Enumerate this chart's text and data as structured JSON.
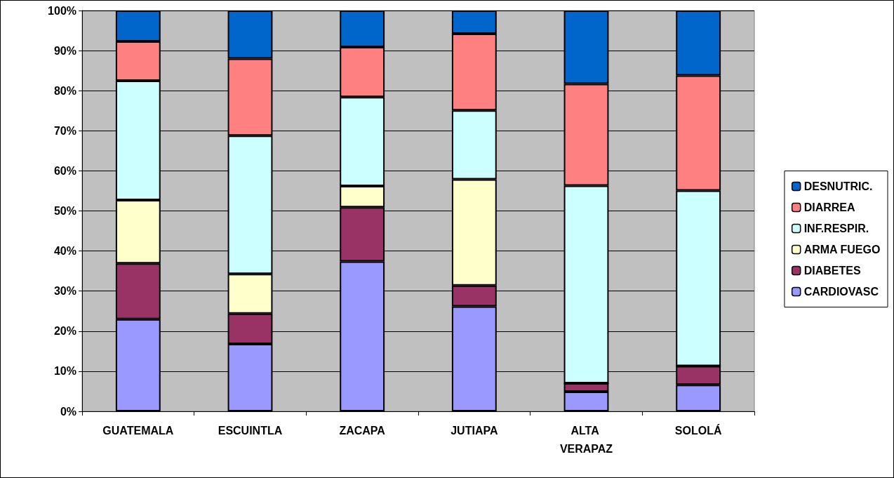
{
  "chart_data": {
    "type": "bar",
    "stacked": true,
    "categories": [
      "GUATEMALA",
      "ESCUINTLA",
      "ZACAPA",
      "JUTIAPA",
      "ALTA VERAPAZ",
      "SOLOLÁ"
    ],
    "series": [
      {
        "name": "CARDIOVASC",
        "color": "#9999ff",
        "values": [
          23.0,
          16.8,
          37.4,
          26.2,
          4.9,
          6.6
        ]
      },
      {
        "name": "DIABETES",
        "color": "#993366",
        "values": [
          13.9,
          7.6,
          13.5,
          5.2,
          2.1,
          4.7
        ]
      },
      {
        "name": "ARMA FUEGO",
        "color": "#ffffcc",
        "values": [
          15.8,
          9.9,
          5.3,
          26.5,
          0,
          0
        ]
      },
      {
        "name": "INF.RESPIR.",
        "color": "#ccffff",
        "values": [
          29.8,
          34.5,
          22.2,
          17.2,
          49.3,
          43.8
        ]
      },
      {
        "name": "DIARREA",
        "color": "#ff8080",
        "values": [
          9.8,
          19.2,
          12.5,
          19.1,
          25.4,
          28.7
        ]
      },
      {
        "name": "DESNUTRIC.",
        "color": "#0066cc",
        "values": [
          7.7,
          12.0,
          9.1,
          5.8,
          18.3,
          16.2
        ]
      }
    ],
    "ylim": [
      0,
      100
    ],
    "yticks": [
      {
        "value": 0,
        "label": "0%"
      },
      {
        "value": 10,
        "label": "10%"
      },
      {
        "value": 20,
        "label": "20%"
      },
      {
        "value": 30,
        "label": "30%"
      },
      {
        "value": 40,
        "label": "40%"
      },
      {
        "value": 50,
        "label": "50%"
      },
      {
        "value": 60,
        "label": "60%"
      },
      {
        "value": 70,
        "label": "70%"
      },
      {
        "value": 80,
        "label": "80%"
      },
      {
        "value": 90,
        "label": "90%"
      },
      {
        "value": 100,
        "label": "100%"
      }
    ],
    "grid": "y",
    "legend": "right"
  }
}
